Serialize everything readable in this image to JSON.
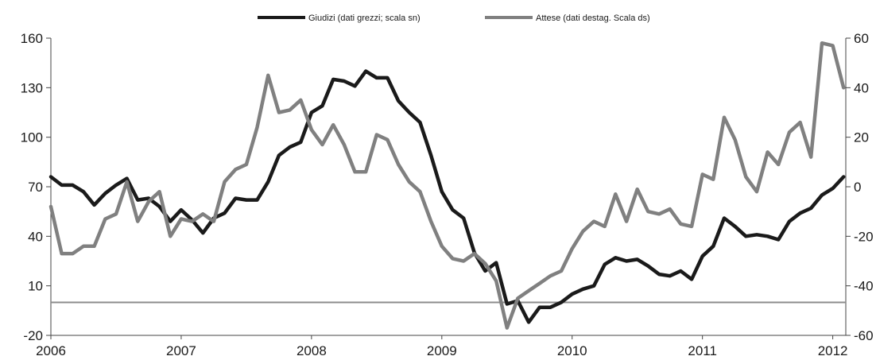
{
  "chart_data": {
    "type": "line",
    "title": "",
    "xlabel": "",
    "x_ticks": [
      "2006",
      "2007",
      "2008",
      "2009",
      "2010",
      "2011",
      "2012"
    ],
    "x_range": [
      2006.0,
      2012.1
    ],
    "y_left": {
      "ylim": [
        -20,
        160
      ],
      "ticks": [
        "160",
        "130",
        "100",
        "70",
        "40",
        "10",
        "-20"
      ]
    },
    "y_right": {
      "ylim": [
        -60,
        60
      ],
      "ticks": [
        "60",
        "40",
        "20",
        "0",
        "-20",
        "-40",
        "-60"
      ]
    },
    "reference_line": {
      "axis": "left",
      "value": 0,
      "color": "#8c8c8c"
    },
    "grid": false,
    "legend_position": "top-center",
    "series": [
      {
        "name": "Giudizi (dati grezzi; scala sn)",
        "axis": "left",
        "color": "#1a1a1a",
        "x": [
          2006.0,
          2006.083,
          2006.167,
          2006.25,
          2006.333,
          2006.417,
          2006.5,
          2006.583,
          2006.667,
          2006.75,
          2006.833,
          2006.917,
          2007.0,
          2007.083,
          2007.167,
          2007.25,
          2007.333,
          2007.417,
          2007.5,
          2007.583,
          2007.667,
          2007.75,
          2007.833,
          2007.917,
          2008.0,
          2008.083,
          2008.167,
          2008.25,
          2008.333,
          2008.417,
          2008.5,
          2008.583,
          2008.667,
          2008.75,
          2008.833,
          2008.917,
          2009.0,
          2009.083,
          2009.167,
          2009.25,
          2009.333,
          2009.417,
          2009.5,
          2009.583,
          2009.667,
          2009.75,
          2009.833,
          2009.917,
          2010.0,
          2010.083,
          2010.167,
          2010.25,
          2010.333,
          2010.417,
          2010.5,
          2010.583,
          2010.667,
          2010.75,
          2010.833,
          2010.917,
          2011.0,
          2011.083,
          2011.167,
          2011.25,
          2011.333,
          2011.417,
          2011.5,
          2011.583,
          2011.667,
          2011.75,
          2011.833,
          2011.917,
          2012.0,
          2012.083
        ],
        "values": [
          76,
          71,
          71,
          67,
          59,
          66,
          71,
          75,
          62,
          63,
          58,
          49,
          56,
          50,
          42,
          51,
          54,
          63,
          62,
          62,
          73,
          89,
          94,
          97,
          115,
          119,
          135,
          134,
          131,
          140,
          136,
          136,
          122,
          115,
          109,
          89,
          67,
          56,
          51,
          30,
          19,
          24,
          -1,
          1,
          -12,
          -3,
          -3,
          0,
          5,
          8,
          10,
          23,
          27,
          25,
          26,
          22,
          17,
          16,
          19,
          14,
          28,
          34,
          51,
          46,
          40,
          41,
          40,
          38,
          49,
          54,
          57,
          65,
          69,
          76
        ]
      },
      {
        "name": "Attese (dati destag. Scala ds)",
        "axis": "right",
        "color": "#808080",
        "x": [
          2006.0,
          2006.083,
          2006.167,
          2006.25,
          2006.333,
          2006.417,
          2006.5,
          2006.583,
          2006.667,
          2006.75,
          2006.833,
          2006.917,
          2007.0,
          2007.083,
          2007.167,
          2007.25,
          2007.333,
          2007.417,
          2007.5,
          2007.583,
          2007.667,
          2007.75,
          2007.833,
          2007.917,
          2008.0,
          2008.083,
          2008.167,
          2008.25,
          2008.333,
          2008.417,
          2008.5,
          2008.583,
          2008.667,
          2008.75,
          2008.833,
          2008.917,
          2009.0,
          2009.083,
          2009.167,
          2009.25,
          2009.333,
          2009.417,
          2009.5,
          2009.583,
          2009.667,
          2009.75,
          2009.833,
          2009.917,
          2010.0,
          2010.083,
          2010.167,
          2010.25,
          2010.333,
          2010.417,
          2010.5,
          2010.583,
          2010.667,
          2010.75,
          2010.833,
          2010.917,
          2011.0,
          2011.083,
          2011.167,
          2011.25,
          2011.333,
          2011.417,
          2011.5,
          2011.583,
          2011.667,
          2011.75,
          2011.833,
          2011.917,
          2012.0,
          2012.083
        ],
        "values": [
          -8,
          -27,
          -27,
          -24,
          -24,
          -13,
          -11,
          2,
          -14,
          -6,
          -2,
          -20,
          -13,
          -14,
          -11,
          -14,
          2,
          7,
          9,
          24,
          45,
          30,
          31,
          35,
          23,
          17,
          25,
          17,
          6,
          6,
          21,
          19,
          9,
          2,
          -2,
          -14,
          -24,
          -29,
          -30,
          -27,
          -31,
          -38,
          -57,
          -45,
          -42,
          -39,
          -36,
          -34,
          -25,
          -18,
          -14,
          -16,
          -3,
          -14,
          -1,
          -10,
          -11,
          -9,
          -15,
          -16,
          5,
          3,
          28,
          19,
          4,
          -2,
          14,
          9,
          22,
          26,
          12,
          58,
          57,
          40
        ]
      }
    ]
  }
}
